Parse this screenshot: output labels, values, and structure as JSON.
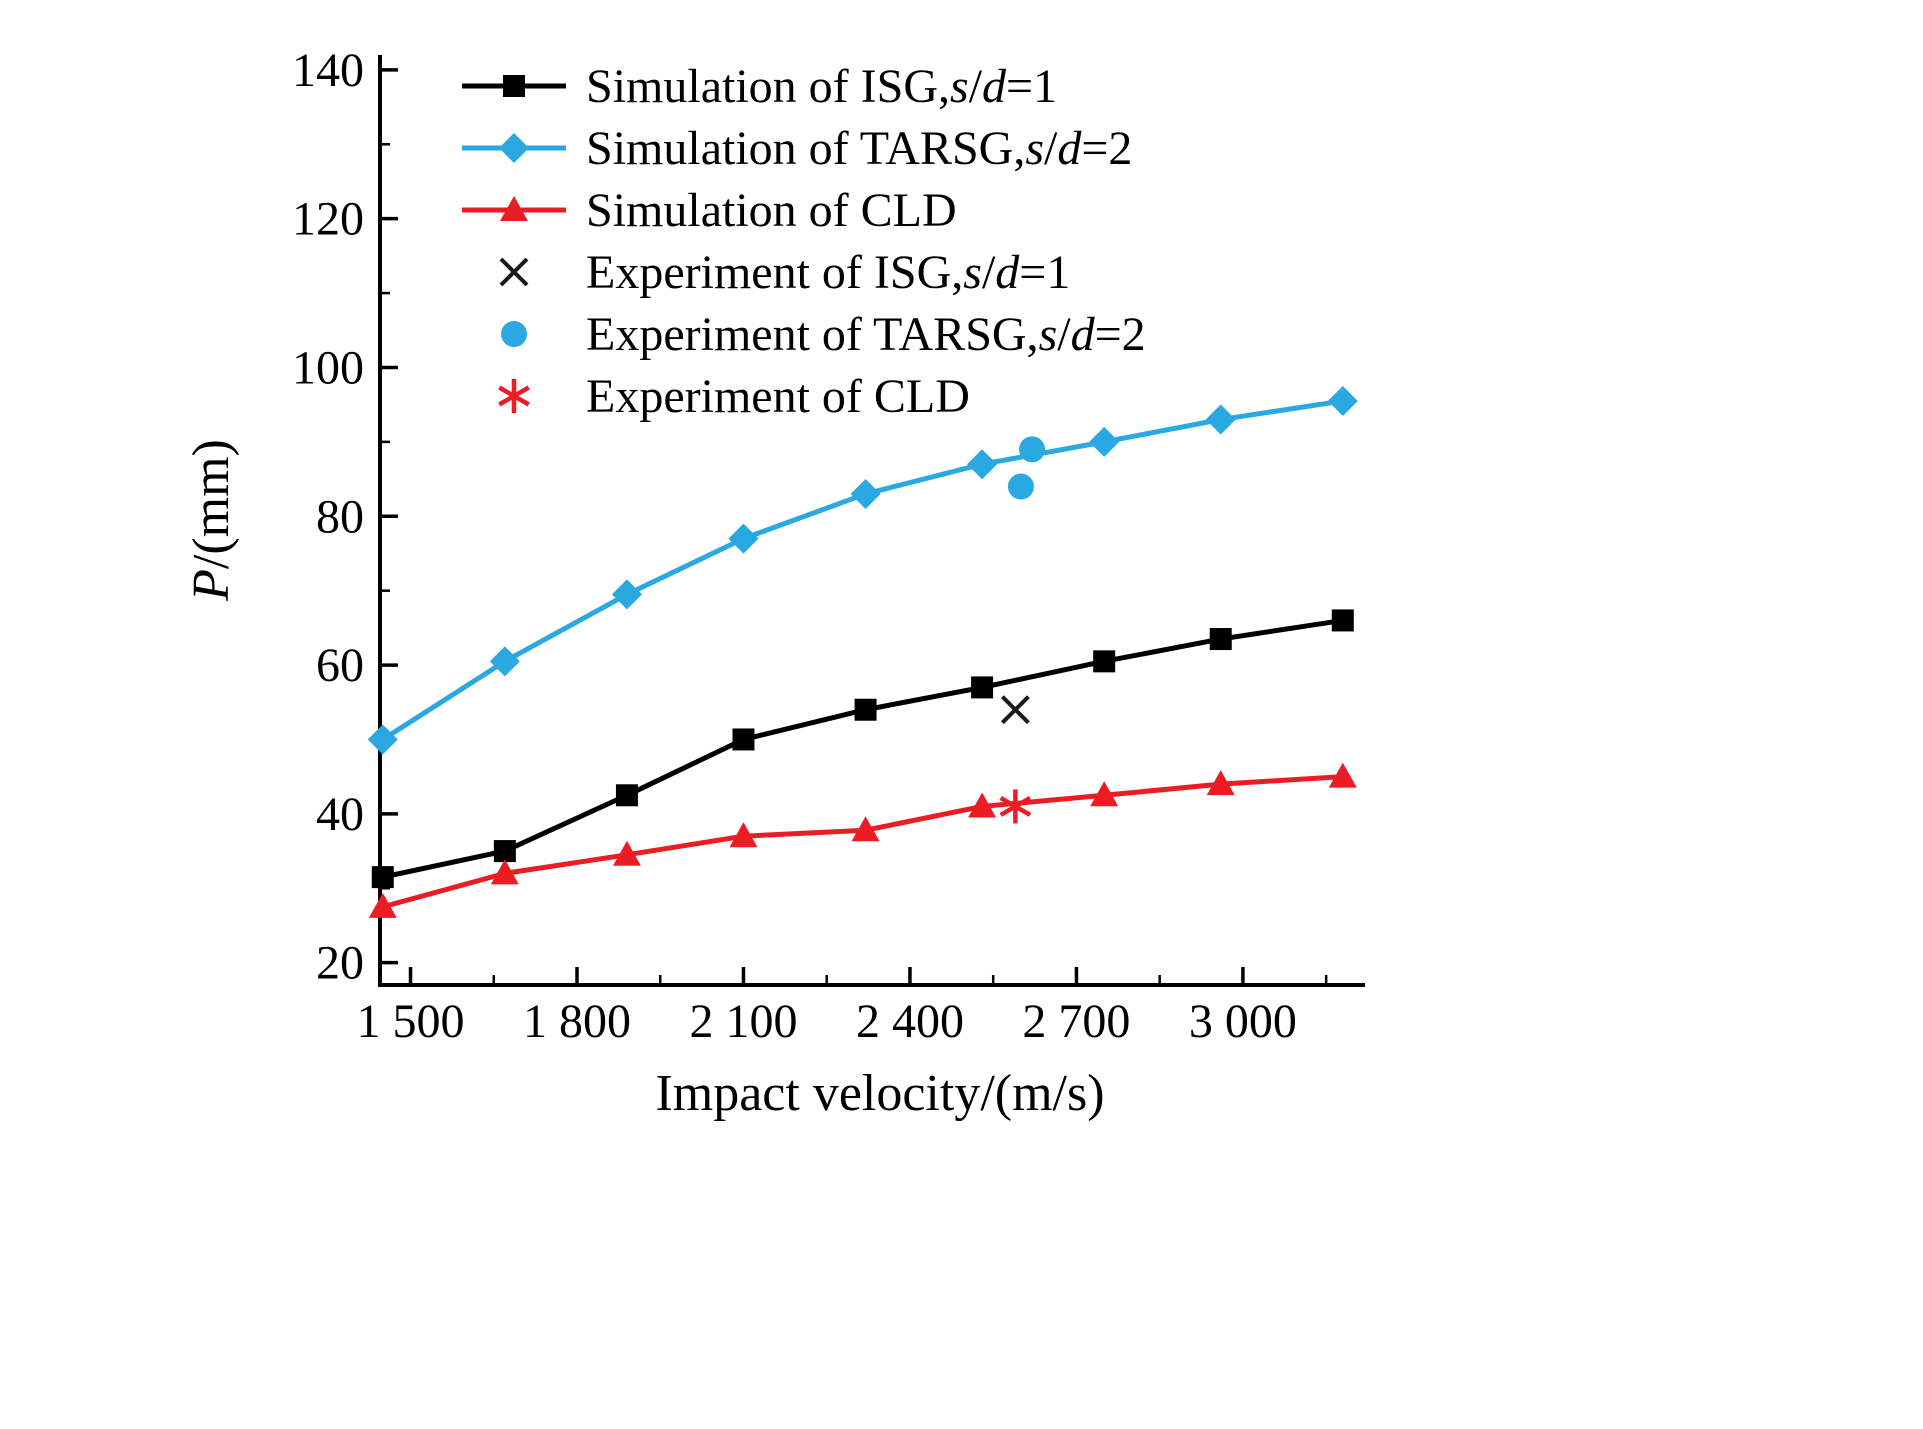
{
  "chart_data": {
    "type": "line",
    "title": "",
    "xlabel": "Impact velocity/(m/s)",
    "ylabel": "P/(mm)",
    "ylabel_parts": [
      {
        "t": "P",
        "i": 1
      },
      {
        "t": "/(mm)"
      }
    ],
    "xlim": [
      1445,
      3220
    ],
    "ylim": [
      17,
      142
    ],
    "grid": "off",
    "legend_position": "top-left",
    "x_major_ticks": [
      1500,
      1800,
      2100,
      2400,
      2700,
      3000
    ],
    "x_tick_labels": [
      "1 500",
      "1 800",
      "2 100",
      "2 400",
      "2 700",
      "3 000"
    ],
    "x_minor_ticks": [
      1650,
      1950,
      2250,
      2550,
      2850,
      3150
    ],
    "y_major_ticks": [
      20,
      40,
      60,
      80,
      100,
      120,
      140
    ],
    "y_tick_labels": [
      "20",
      "40",
      "60",
      "80",
      "100",
      "120",
      "140"
    ],
    "y_minor_ticks": [
      30,
      50,
      70,
      90,
      110,
      130
    ],
    "x": [
      1450,
      1670,
      1890,
      2100,
      2320,
      2530,
      2750,
      2960,
      3180
    ],
    "series": [
      {
        "name": "Simulation of ISG,s/d=1",
        "label_parts": [
          {
            "t": "Simulation of ISG,"
          },
          {
            "t": "s",
            "i": 1
          },
          {
            "t": "/"
          },
          {
            "t": "d",
            "i": 1
          },
          {
            "t": "=1"
          }
        ],
        "color": "#000000",
        "marker": "square",
        "values": [
          31.5,
          35,
          42.5,
          50,
          54,
          57,
          60.5,
          63.5,
          66
        ]
      },
      {
        "name": "Simulation of TARSG,s/d=2",
        "label_parts": [
          {
            "t": "Simulation of TARSG,"
          },
          {
            "t": "s",
            "i": 1
          },
          {
            "t": "/"
          },
          {
            "t": "d",
            "i": 1
          },
          {
            "t": "=2"
          }
        ],
        "color": "#29A8E2",
        "marker": "diamond",
        "values": [
          50,
          60.5,
          69.5,
          77,
          83,
          87,
          90,
          93,
          95.5
        ]
      },
      {
        "name": "Simulation of CLD",
        "label_parts": [
          {
            "t": "Simulation of CLD"
          }
        ],
        "color": "#EC1C24",
        "marker": "triangle",
        "values": [
          27.5,
          32,
          34.5,
          37,
          37.8,
          41,
          42.5,
          44,
          45
        ]
      }
    ],
    "experiments": [
      {
        "name": "Experiment of ISG,s/d=1",
        "label_parts": [
          {
            "t": "Experiment of ISG,"
          },
          {
            "t": "s",
            "i": 1
          },
          {
            "t": "/"
          },
          {
            "t": "d",
            "i": 1
          },
          {
            "t": "=1"
          }
        ],
        "color": "#1a1a1a",
        "marker": "cross",
        "points": [
          [
            2590,
            54
          ]
        ]
      },
      {
        "name": "Experiment of TARSG,s/d=2",
        "label_parts": [
          {
            "t": "Experiment of TARSG,"
          },
          {
            "t": "s",
            "i": 1
          },
          {
            "t": "/"
          },
          {
            "t": "d",
            "i": 1
          },
          {
            "t": "=2"
          }
        ],
        "color": "#29A8E2",
        "marker": "circle",
        "points": [
          [
            2600,
            84
          ],
          [
            2620,
            89
          ]
        ]
      },
      {
        "name": "Experiment of CLD",
        "label_parts": [
          {
            "t": "Experiment of CLD"
          }
        ],
        "color": "#EC1C24",
        "marker": "asterisk",
        "points": [
          [
            2590,
            41
          ]
        ]
      }
    ]
  }
}
